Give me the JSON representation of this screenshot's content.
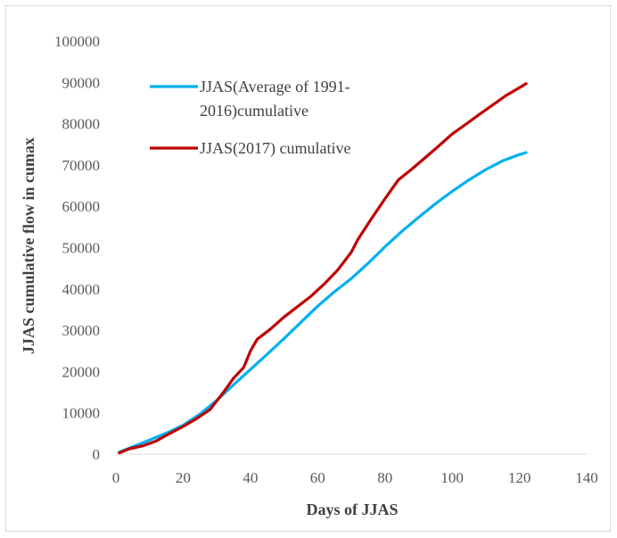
{
  "chart_data": {
    "type": "line",
    "xlabel": "Days of JJAS",
    "ylabel": "JJAS cumulative flow in cumax",
    "xlim": [
      0,
      140
    ],
    "ylim": [
      0,
      100000
    ],
    "x_ticks": [
      "0",
      "20",
      "40",
      "60",
      "80",
      "100",
      "120",
      "140"
    ],
    "y_ticks": [
      "0",
      "10000",
      "20000",
      "30000",
      "40000",
      "50000",
      "60000",
      "70000",
      "80000",
      "90000",
      "100000"
    ],
    "grid": false,
    "legend_position": "top-left",
    "series": [
      {
        "name": "JJAS(Average of 1991-2016)cumulative",
        "legend_lines": [
          "JJAS(Average of 1991-",
          "2016)cumulative"
        ],
        "color": "#00b0f0",
        "points": [
          [
            1,
            500
          ],
          [
            5,
            1800
          ],
          [
            10,
            3400
          ],
          [
            15,
            5100
          ],
          [
            20,
            7000
          ],
          [
            25,
            9700
          ],
          [
            30,
            13000
          ],
          [
            35,
            16800
          ],
          [
            40,
            20500
          ],
          [
            45,
            24200
          ],
          [
            50,
            28000
          ],
          [
            55,
            31900
          ],
          [
            60,
            35800
          ],
          [
            65,
            39300
          ],
          [
            70,
            42500
          ],
          [
            75,
            46200
          ],
          [
            80,
            50200
          ],
          [
            85,
            53900
          ],
          [
            90,
            57300
          ],
          [
            95,
            60600
          ],
          [
            100,
            63600
          ],
          [
            105,
            66400
          ],
          [
            110,
            68900
          ],
          [
            115,
            71000
          ],
          [
            120,
            72500
          ],
          [
            122,
            73000
          ]
        ]
      },
      {
        "name": "JJAS(2017) cumulative",
        "legend_lines": [
          "JJAS(2017) cumulative"
        ],
        "color": "#c00000",
        "points": [
          [
            1,
            300
          ],
          [
            4,
            1300
          ],
          [
            8,
            2000
          ],
          [
            12,
            3200
          ],
          [
            16,
            5000
          ],
          [
            20,
            6700
          ],
          [
            24,
            8600
          ],
          [
            28,
            10800
          ],
          [
            32,
            15000
          ],
          [
            35,
            18400
          ],
          [
            38,
            21000
          ],
          [
            40,
            25000
          ],
          [
            42,
            27800
          ],
          [
            46,
            30300
          ],
          [
            50,
            33200
          ],
          [
            54,
            35700
          ],
          [
            58,
            38200
          ],
          [
            62,
            41200
          ],
          [
            66,
            44600
          ],
          [
            70,
            48900
          ],
          [
            72,
            52000
          ],
          [
            76,
            57000
          ],
          [
            80,
            61800
          ],
          [
            84,
            66400
          ],
          [
            88,
            69000
          ],
          [
            92,
            71800
          ],
          [
            96,
            74600
          ],
          [
            100,
            77500
          ],
          [
            104,
            79800
          ],
          [
            108,
            82200
          ],
          [
            112,
            84500
          ],
          [
            116,
            86800
          ],
          [
            120,
            88700
          ],
          [
            122,
            89700
          ]
        ]
      }
    ]
  }
}
